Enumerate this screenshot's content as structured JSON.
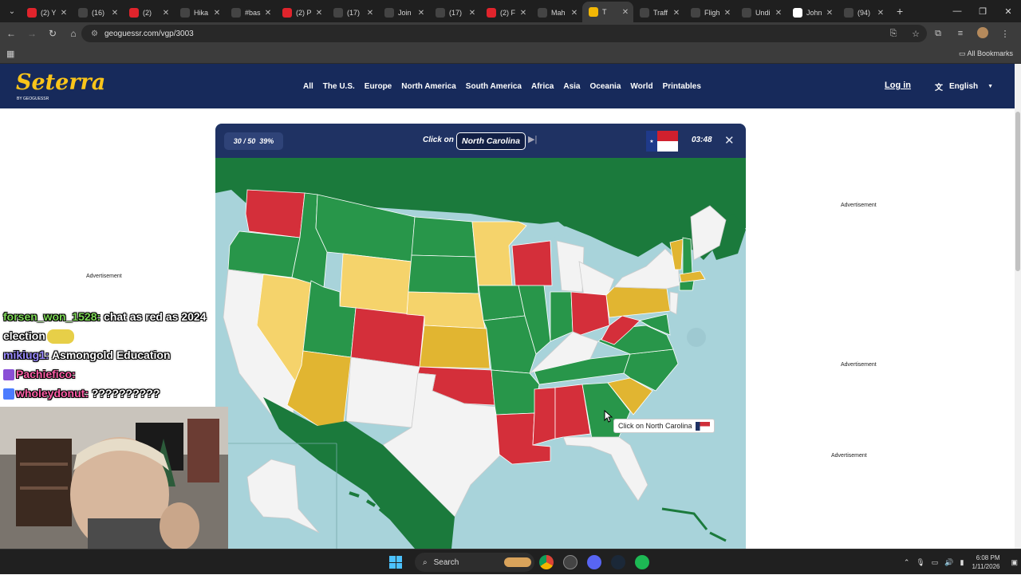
{
  "browser": {
    "tabs": [
      {
        "title": "(2) Y",
        "color": "#e0242c"
      },
      {
        "title": "(16)",
        "color": "#444444"
      },
      {
        "title": "(2)",
        "color": "#e0242c"
      },
      {
        "title": "Hika",
        "color": "#444444"
      },
      {
        "title": "#bas",
        "color": "#444444"
      },
      {
        "title": "(2) P",
        "color": "#e0242c"
      },
      {
        "title": "(17)",
        "color": "#444444"
      },
      {
        "title": "Join",
        "color": "#444444"
      },
      {
        "title": "(17)",
        "color": "#444444"
      },
      {
        "title": "(2) F",
        "color": "#e0242c"
      },
      {
        "title": "Mah",
        "color": "#444444"
      },
      {
        "title": "T",
        "color": "#f2b705",
        "active": true
      },
      {
        "title": "Traff",
        "color": "#444444"
      },
      {
        "title": "Fligh",
        "color": "#444444"
      },
      {
        "title": "Undi",
        "color": "#444444"
      },
      {
        "title": "John",
        "color": "#ffffff"
      },
      {
        "title": "(94)",
        "color": "#444444"
      }
    ],
    "url": "geoguessr.com/vgp/3003",
    "all_bookmarks": "All Bookmarks"
  },
  "site": {
    "logo": "Seterra",
    "logo_sub": "BY GEOGUESSR",
    "nav": [
      "All",
      "The U.S.",
      "Europe",
      "North America",
      "South America",
      "Africa",
      "Asia",
      "Oceania",
      "World",
      "Printables"
    ],
    "login": "Log in",
    "language": "English",
    "ad_label": "Advertisement"
  },
  "game": {
    "score": "30 / 50",
    "percent": "39%",
    "click_on": "Click on",
    "target": "North Carolina",
    "timer": "03:48",
    "tooltip": "Click on North Carolina"
  },
  "chat": [
    {
      "user": "forsen_won_1528:",
      "color": "#7ed957",
      "message": " chat as red as 2024 election"
    },
    {
      "user": "mikiug1:",
      "color": "#9b8cff",
      "message": " Asmongold Education"
    },
    {
      "user": "Pachiefico:",
      "color": "#ff5ea8",
      "message": ""
    },
    {
      "user": "wholeydonut:",
      "color": "#ff5ea8",
      "message": " ??????????"
    }
  ],
  "taskbar": {
    "search": "Search",
    "time": "6:08 PM",
    "date": "1/11/2026"
  },
  "colors": {
    "correct": "#28964a",
    "dark_green": "#1b7a3c",
    "second_try": "#f5d36b",
    "third_try": "#e1b531",
    "wrong": "#d42f3a",
    "unanswered": "#f3f3f3",
    "water": "#a8d3da"
  }
}
